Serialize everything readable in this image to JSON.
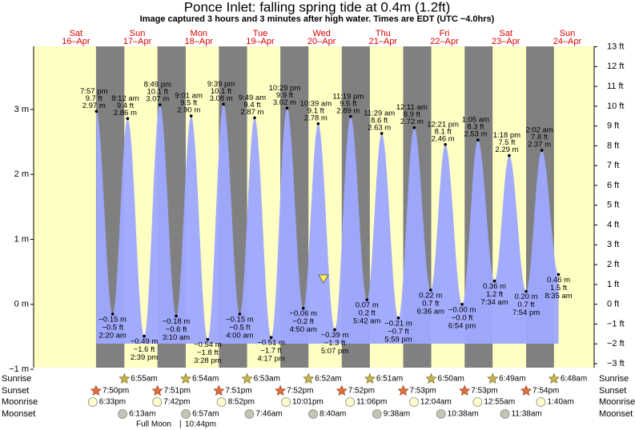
{
  "chart_data": {
    "type": "tide",
    "title": "Ponce Inlet: falling  spring tide at 0.4m (1.2ft)",
    "subtitle": "Image captured 3 hours and 3 minutes after high water. Times are EDT (UTC −4.0hrs)",
    "ylim": [
      -0.95,
      3.97
    ],
    "yticks": [
      {
        "value": 3,
        "label": "3 m"
      },
      {
        "value": 2,
        "label": "2 m"
      },
      {
        "value": 1,
        "label": "1 m"
      },
      {
        "value": 0,
        "label": "0 m"
      },
      {
        "value": -1,
        "label": "−1 m"
      }
    ],
    "y2lim": [
      -3.12,
      13.02
    ],
    "y2ticks": [
      {
        "value": 13,
        "label": "13 ft"
      },
      {
        "value": 12,
        "label": "12 ft"
      },
      {
        "value": 11,
        "label": "11 ft"
      },
      {
        "value": 10,
        "label": "10 ft"
      },
      {
        "value": 9,
        "label": "9 ft"
      },
      {
        "value": 8,
        "label": "8 ft"
      },
      {
        "value": 7,
        "label": "7 ft"
      },
      {
        "value": 6,
        "label": "6 ft"
      },
      {
        "value": 5,
        "label": "5 ft"
      },
      {
        "value": 4,
        "label": "4 ft"
      },
      {
        "value": 3,
        "label": "3 ft"
      },
      {
        "value": 2,
        "label": "2 ft"
      },
      {
        "value": 1,
        "label": "1 ft"
      },
      {
        "value": 0,
        "label": "0 ft"
      },
      {
        "value": -1,
        "label": "−1 ft"
      },
      {
        "value": -2,
        "label": "−2 ft"
      },
      {
        "value": -3,
        "label": "−3 ft"
      }
    ],
    "row_labels": [
      "Sunrise",
      "Sunset",
      "Moonrise",
      "Moonset"
    ],
    "moon_phase": "Full Moon",
    "moon_phase_time": "10:44pm",
    "days": [
      {
        "weekday": "Sat",
        "date": "16–Apr",
        "sunset": "7:50pm",
        "moonrise": "6:33pm",
        "tides": {
          "times": [
            "7:57 pm"
          ],
          "values": [
            2.97
          ],
          "value_labels": [
            "2.97 m"
          ],
          "ft_labels": [
            "9.7 ft"
          ]
        }
      },
      {
        "weekday": "Sun",
        "date": "17–Apr",
        "sunrise": "6:55am",
        "sunset": "7:51pm",
        "moonrise": "7:42pm",
        "moonset": "6:13am",
        "tides": {
          "times": [
            "2:20 am",
            "8:12 am",
            "2:39 pm",
            "8:49 pm"
          ],
          "values": [
            -0.15,
            2.86,
            -0.49,
            3.07
          ],
          "value_labels": [
            "−0.15 m",
            "2.86 m",
            "−0.49 m",
            "3.07 m"
          ],
          "ft_labels": [
            "−0.5 ft",
            "9.4 ft",
            "−1.6 ft",
            "10.1 ft"
          ]
        }
      },
      {
        "weekday": "Mon",
        "date": "18–Apr",
        "sunrise": "6:54am",
        "sunset": "7:51pm",
        "moonrise": "8:52pm",
        "moonset": "6:57am",
        "tides": {
          "times": [
            "3:10 am",
            "9:01 am",
            "3:28 pm",
            "9:39 pm"
          ],
          "values": [
            -0.18,
            2.9,
            -0.54,
            3.08
          ],
          "value_labels": [
            "−0.18 m",
            "2.90 m",
            "−0.54 m",
            "3.08 m"
          ],
          "ft_labels": [
            "−0.6 ft",
            "9.5 ft",
            "−1.8 ft",
            "10.1 ft"
          ]
        }
      },
      {
        "weekday": "Tue",
        "date": "19–Apr",
        "sunrise": "6:53am",
        "sunset": "7:52pm",
        "moonrise": "10:01pm",
        "moonset": "7:46am",
        "tides": {
          "times": [
            "4:00 am",
            "9:49 am",
            "4:17 pm",
            "10:29 pm"
          ],
          "values": [
            -0.15,
            2.87,
            -0.51,
            3.02
          ],
          "value_labels": [
            "−0.15 m",
            "2.87 m",
            "−0.51 m",
            "3.02 m"
          ],
          "ft_labels": [
            "−0.5 ft",
            "9.4 ft",
            "−1.7 ft",
            "9.9 ft"
          ]
        }
      },
      {
        "weekday": "Wed",
        "date": "20–Apr",
        "sunrise": "6:52am",
        "sunset": "7:52pm",
        "moonrise": "11:06pm",
        "moonset": "8:40am",
        "tides": {
          "times": [
            "4:50 am",
            "10:39 am",
            "5:07 pm",
            "11:19 pm"
          ],
          "values": [
            -0.06,
            2.78,
            -0.39,
            2.89
          ],
          "value_labels": [
            "−0.06 m",
            "2.78 m",
            "−0.39 m",
            "2.89 m"
          ],
          "ft_labels": [
            "−0.2 ft",
            "9.1 ft",
            "−1.3 ft",
            "9.5 ft"
          ]
        }
      },
      {
        "weekday": "Thu",
        "date": "21–Apr",
        "sunrise": "6:51am",
        "sunset": "7:53pm",
        "moonset": "9:38am",
        "tides": {
          "times": [
            "5:42 am",
            "11:29 am",
            "5:59 pm"
          ],
          "values": [
            0.07,
            2.63,
            -0.21
          ],
          "value_labels": [
            "0.07 m",
            "2.63 m",
            "−0.21 m"
          ],
          "ft_labels": [
            "0.2 ft",
            "8.6 ft",
            "−0.7 ft"
          ]
        }
      },
      {
        "weekday": "Fri",
        "date": "22–Apr",
        "sunrise": "6:50am",
        "sunset": "7:53pm",
        "moonrise": "12:04am",
        "moonset": "10:38am",
        "tides": {
          "times": [
            "12:11 am",
            "6:36 am",
            "12:21 pm",
            "6:54 pm"
          ],
          "values": [
            2.72,
            0.22,
            2.46,
            -0.0
          ],
          "value_labels": [
            "2.72 m",
            "0.22 m",
            "2.46 m",
            "−0.00 m"
          ],
          "ft_labels": [
            "8.9 ft",
            "0.7 ft",
            "8.1 ft",
            "−0.0 ft"
          ]
        }
      },
      {
        "weekday": "Sat",
        "date": "23–Apr",
        "sunrise": "6:49am",
        "sunset": "7:54pm",
        "moonrise": "12:55am",
        "moonset": "11:38am",
        "tides": {
          "times": [
            "1:05 am",
            "7:34 am",
            "1:18 pm",
            "7:54 pm"
          ],
          "values": [
            2.53,
            0.36,
            2.29,
            0.2
          ],
          "value_labels": [
            "2.53 m",
            "0.36 m",
            "2.29 m",
            "0.20 m"
          ],
          "ft_labels": [
            "8.3 ft",
            "1.2 ft",
            "7.5 ft",
            "0.7 ft"
          ]
        }
      },
      {
        "weekday": "Sun",
        "date": "24–Apr",
        "sunrise": "6:48am",
        "moonrise": "1:40am",
        "tides": {
          "times": [
            "2:02 am",
            "8:35 am"
          ],
          "values": [
            2.37,
            0.46
          ],
          "value_labels": [
            "2.37 m",
            "0.46 m"
          ],
          "ft_labels": [
            "7.8 ft",
            "1.5 ft"
          ]
        }
      }
    ]
  }
}
